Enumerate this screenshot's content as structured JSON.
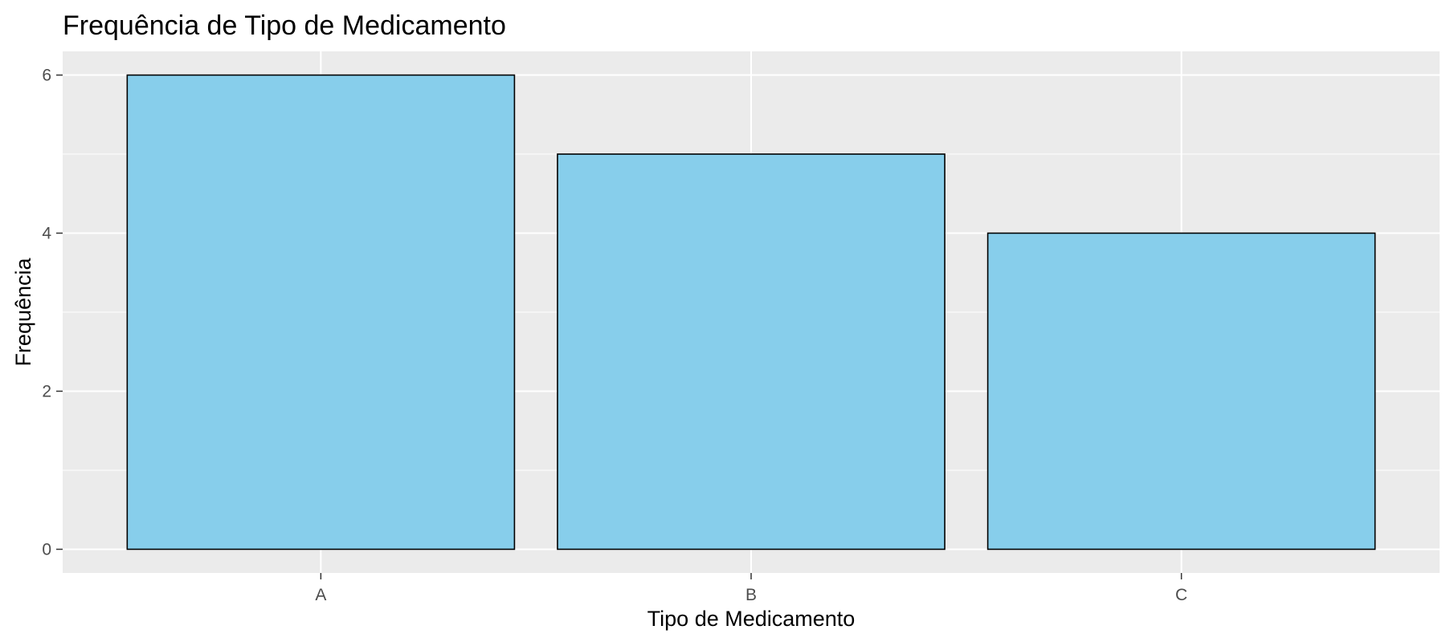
{
  "chart_data": {
    "type": "bar",
    "title": "Frequência de Tipo de Medicamento",
    "xlabel": "Tipo de Medicamento",
    "ylabel": "Frequência",
    "categories": [
      "A",
      "B",
      "C"
    ],
    "values": [
      6,
      5,
      4
    ],
    "ylim": [
      -0.3,
      6.3
    ],
    "yticks": [
      0,
      2,
      4,
      6
    ],
    "y_minor_gridlines": [
      1,
      3,
      5
    ],
    "grid": true,
    "legend": "none",
    "colors": {
      "bar_fill": "#87CEEB",
      "bar_stroke": "#000000",
      "panel_background": "#EBEBEB",
      "gridline": "#FFFFFF",
      "tick_label": "#4D4D4D"
    }
  }
}
